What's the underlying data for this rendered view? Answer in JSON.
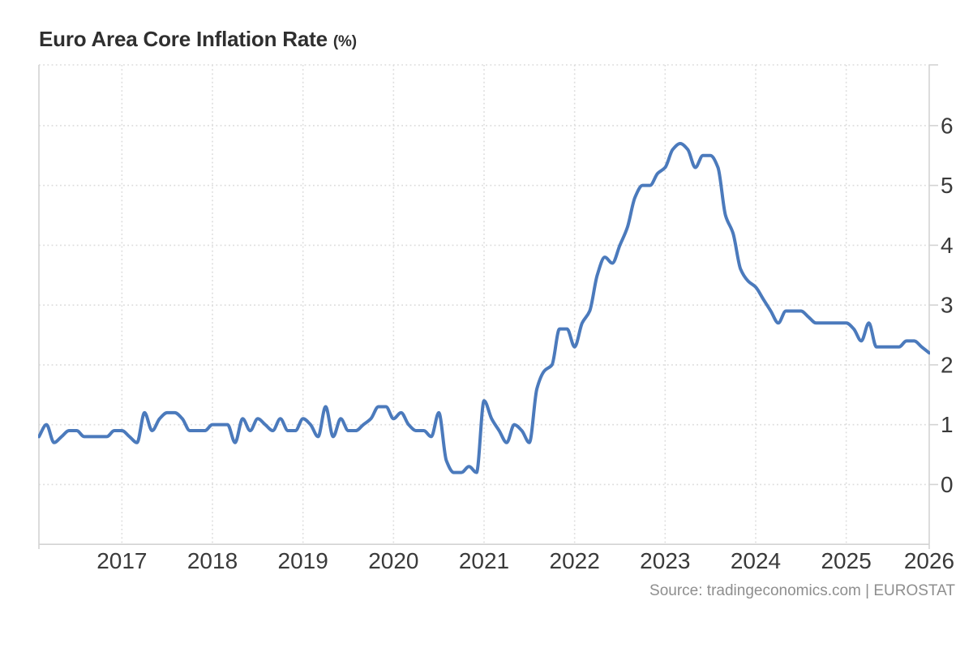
{
  "title": "Euro Area Core Inflation Rate",
  "title_suffix": "(%)",
  "source": "Source: tradingeconomics.com | EUROSTAT",
  "colors": {
    "line": "#4b7abc",
    "grid": "#dcdcdc",
    "axis": "#d3d3d3",
    "tick_label": "#3a3a3a",
    "title": "#2f2f2f",
    "source": "#8e8e8e",
    "background": "#ffffff"
  },
  "chart_data": {
    "type": "line",
    "title": "Euro Area Core Inflation Rate (%)",
    "unit": "percent",
    "frequency": "monthly",
    "start_month": "2016-02",
    "end_month": "2025-12",
    "line_shape": "smooth",
    "grid": "dotted",
    "legend": "none",
    "ylim": [
      -1,
      7
    ],
    "y_ticks": [
      0,
      1,
      2,
      3,
      4,
      5,
      6
    ],
    "x_tick_labels": [
      "2017",
      "2018",
      "2019",
      "2020",
      "2021",
      "2022",
      "2023",
      "2024",
      "2025",
      "2026"
    ],
    "series": [
      {
        "name": "Core Inflation Rate (%)",
        "values": [
          0.8,
          1.0,
          0.7,
          0.8,
          0.9,
          0.9,
          0.8,
          0.8,
          0.8,
          0.8,
          0.9,
          0.9,
          0.8,
          0.7,
          1.2,
          0.9,
          1.1,
          1.2,
          1.2,
          1.1,
          0.9,
          0.9,
          0.9,
          1.0,
          1.0,
          1.0,
          0.7,
          1.1,
          0.9,
          1.1,
          1.0,
          0.9,
          1.1,
          0.9,
          0.9,
          1.1,
          1.0,
          0.8,
          1.3,
          0.8,
          1.1,
          0.9,
          0.9,
          1.0,
          1.1,
          1.3,
          1.3,
          1.1,
          1.2,
          1.0,
          0.9,
          0.9,
          0.8,
          1.2,
          0.4,
          0.2,
          0.2,
          0.3,
          0.2,
          1.4,
          1.1,
          0.9,
          0.7,
          1.0,
          0.9,
          0.7,
          1.6,
          1.9,
          2.0,
          2.6,
          2.6,
          2.3,
          2.7,
          2.9,
          3.5,
          3.8,
          3.7,
          4.0,
          4.3,
          4.8,
          5.0,
          5.0,
          5.2,
          5.3,
          5.6,
          5.7,
          5.6,
          5.3,
          5.5,
          5.5,
          5.3,
          4.5,
          4.2,
          3.6,
          3.4,
          3.3,
          3.1,
          2.9,
          2.7,
          2.9,
          2.9,
          2.9,
          2.8,
          2.7,
          2.7,
          2.7,
          2.7,
          2.7,
          2.6,
          2.4,
          2.7,
          2.3,
          2.3,
          2.3,
          2.3,
          2.4,
          2.4,
          2.3,
          2.2
        ]
      }
    ]
  }
}
